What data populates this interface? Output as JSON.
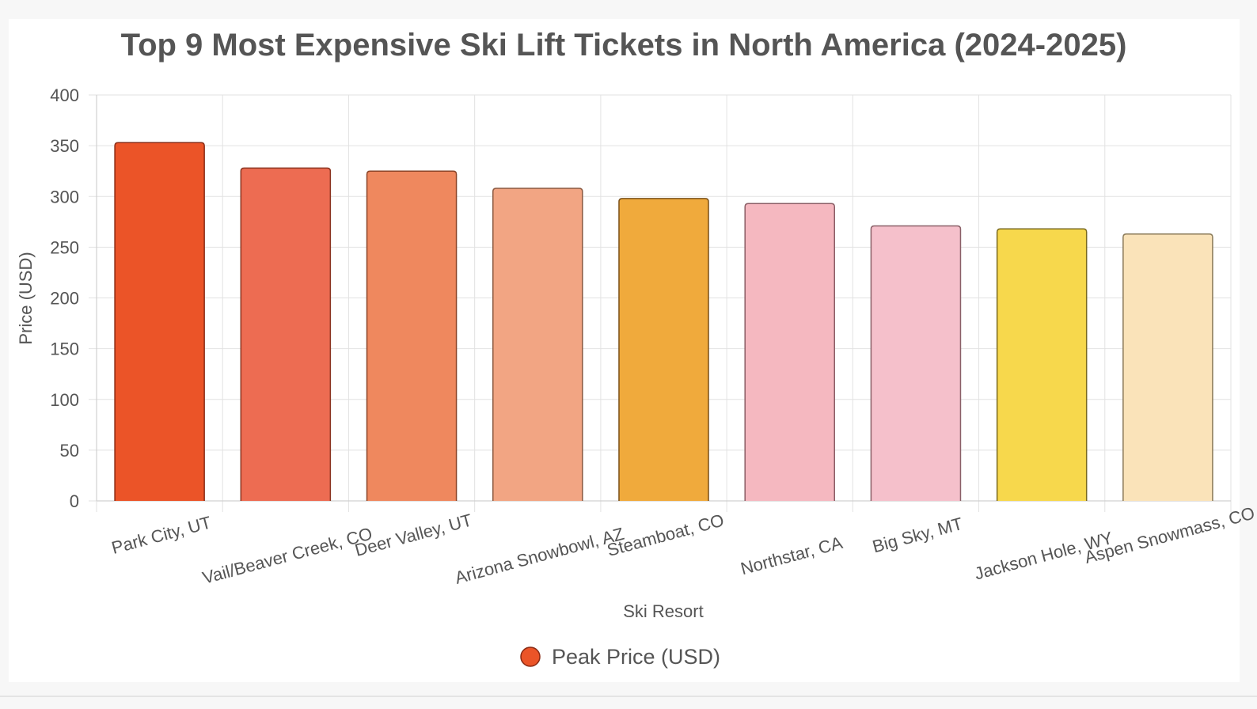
{
  "chart_data": {
    "type": "bar",
    "title": "Top 9 Most Expensive Ski Lift Tickets in North America (2024-2025)",
    "xlabel": "Ski Resort",
    "ylabel": "Price (USD)",
    "ylim": [
      0,
      400
    ],
    "yticks": [
      0,
      50,
      100,
      150,
      200,
      250,
      300,
      350,
      400
    ],
    "grid": true,
    "legend_position": "bottom",
    "categories": [
      "Park City, UT",
      "Vail/Beaver Creek, CO",
      "Deer Valley, UT",
      "Arizona Snowbowl, AZ",
      "Steamboat, CO",
      "Northstar, CA",
      "Big Sky, MT",
      "Jackson Hole, WY",
      "Aspen Snowmass, CO"
    ],
    "series": [
      {
        "name": "Peak Price (USD)",
        "values": [
          353,
          328,
          325,
          308,
          298,
          293,
          271,
          268,
          263
        ],
        "colors": [
          "#eb5428",
          "#ed6c52",
          "#ef885e",
          "#f2a583",
          "#f0aa3c",
          "#f5b8c0",
          "#f5c0cb",
          "#f7d84c",
          "#fae3b9"
        ],
        "border_colors": [
          "#8a2a14",
          "#8a3420",
          "#8a4428",
          "#8a5840",
          "#7a5018",
          "#8a5c64",
          "#8a6068",
          "#7a6a20",
          "#8a7a58"
        ]
      }
    ]
  }
}
